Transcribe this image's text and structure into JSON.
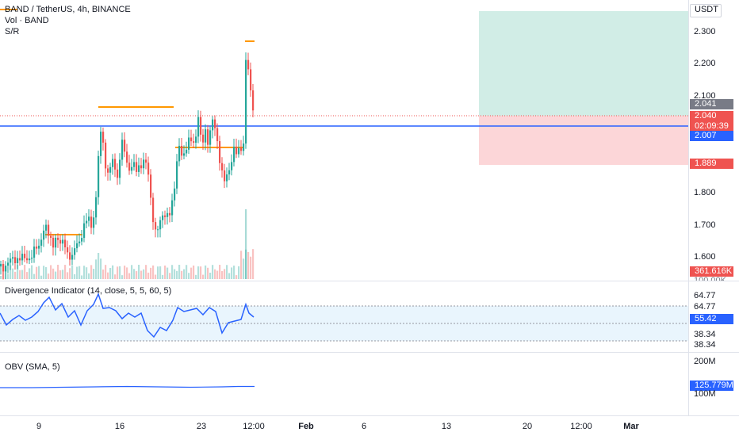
{
  "header": {
    "symbol_line": "BAND / TetherUS, 4h, BINANCE",
    "volume_line": "Vol · BAND",
    "sr_line": "S/R"
  },
  "price_axis": {
    "currency": "USDT",
    "ticks": [
      "2.300",
      "2.200",
      "2.100",
      "1.800",
      "1.700",
      "1.600"
    ],
    "last_price": "2.041",
    "current_price": "2.040",
    "countdown": "02:09:39",
    "horizontal_line": "2.007",
    "stop_level": "1.889",
    "volume_value": "361.616K",
    "volume_axis": "100.00K"
  },
  "divergence": {
    "title": "Divergence Indicator (14, close, 5, 5, 60, 5)",
    "upper_a": "64.77",
    "upper_b": "64.77",
    "current": "55.42",
    "lower_a": "38.34",
    "lower_b": "38.34"
  },
  "obv": {
    "title": "OBV (SMA, 5)",
    "top_tick": "200M",
    "value": "125.779M",
    "bottom_tick": "100M"
  },
  "time_axis": {
    "labels": [
      {
        "text": "9",
        "bold": false
      },
      {
        "text": "16",
        "bold": false
      },
      {
        "text": "23",
        "bold": false
      },
      {
        "text": "12:00",
        "bold": false
      },
      {
        "text": "Feb",
        "bold": true
      },
      {
        "text": "6",
        "bold": false
      },
      {
        "text": "13",
        "bold": false
      },
      {
        "text": "20",
        "bold": false
      },
      {
        "text": "12:00",
        "bold": false
      },
      {
        "text": "Mar",
        "bold": true
      }
    ]
  },
  "colors": {
    "up": "#26a69a",
    "down": "#ef5350",
    "blue_line": "#2962ff",
    "sr_orange": "#ff9800",
    "target_zone": "#d1ede6",
    "stop_zone": "#fcd6d8",
    "divergence_line": "#2962ff"
  }
}
